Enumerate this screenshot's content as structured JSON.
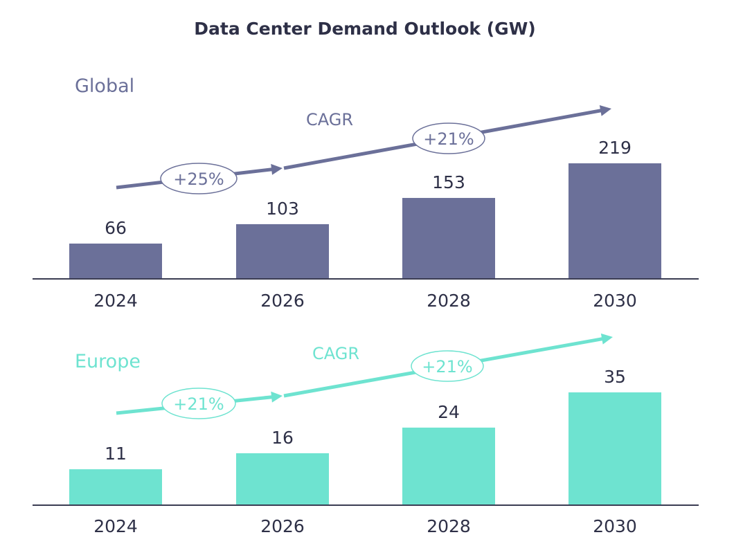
{
  "chart_data": [
    {
      "type": "bar",
      "title": "Data Center Demand Outlook (GW)",
      "region": "Global",
      "unit": "GW",
      "color": "#6b7099",
      "categories": [
        "2024",
        "2026",
        "2028",
        "2030"
      ],
      "values": [
        66,
        103,
        153,
        219
      ],
      "cagr_label": "CAGR",
      "cagr": [
        {
          "period": "2024-2026",
          "label": "+25%"
        },
        {
          "period": "2026-2030",
          "label": "+21%"
        }
      ],
      "xlabel": "",
      "ylabel": "",
      "grid": false,
      "ylim": [
        0,
        219
      ]
    },
    {
      "type": "bar",
      "region": "Europe",
      "unit": "GW",
      "color": "#6ee3d0",
      "categories": [
        "2024",
        "2026",
        "2028",
        "2030"
      ],
      "values": [
        11,
        16,
        24,
        35
      ],
      "cagr_label": "CAGR",
      "cagr": [
        {
          "period": "2024-2026",
          "label": "+21%"
        },
        {
          "period": "2026-2030",
          "label": "+21%"
        }
      ],
      "xlabel": "",
      "ylabel": "",
      "grid": false,
      "ylim": [
        0,
        35
      ]
    }
  ],
  "title": "Data Center Demand Outlook (GW)"
}
